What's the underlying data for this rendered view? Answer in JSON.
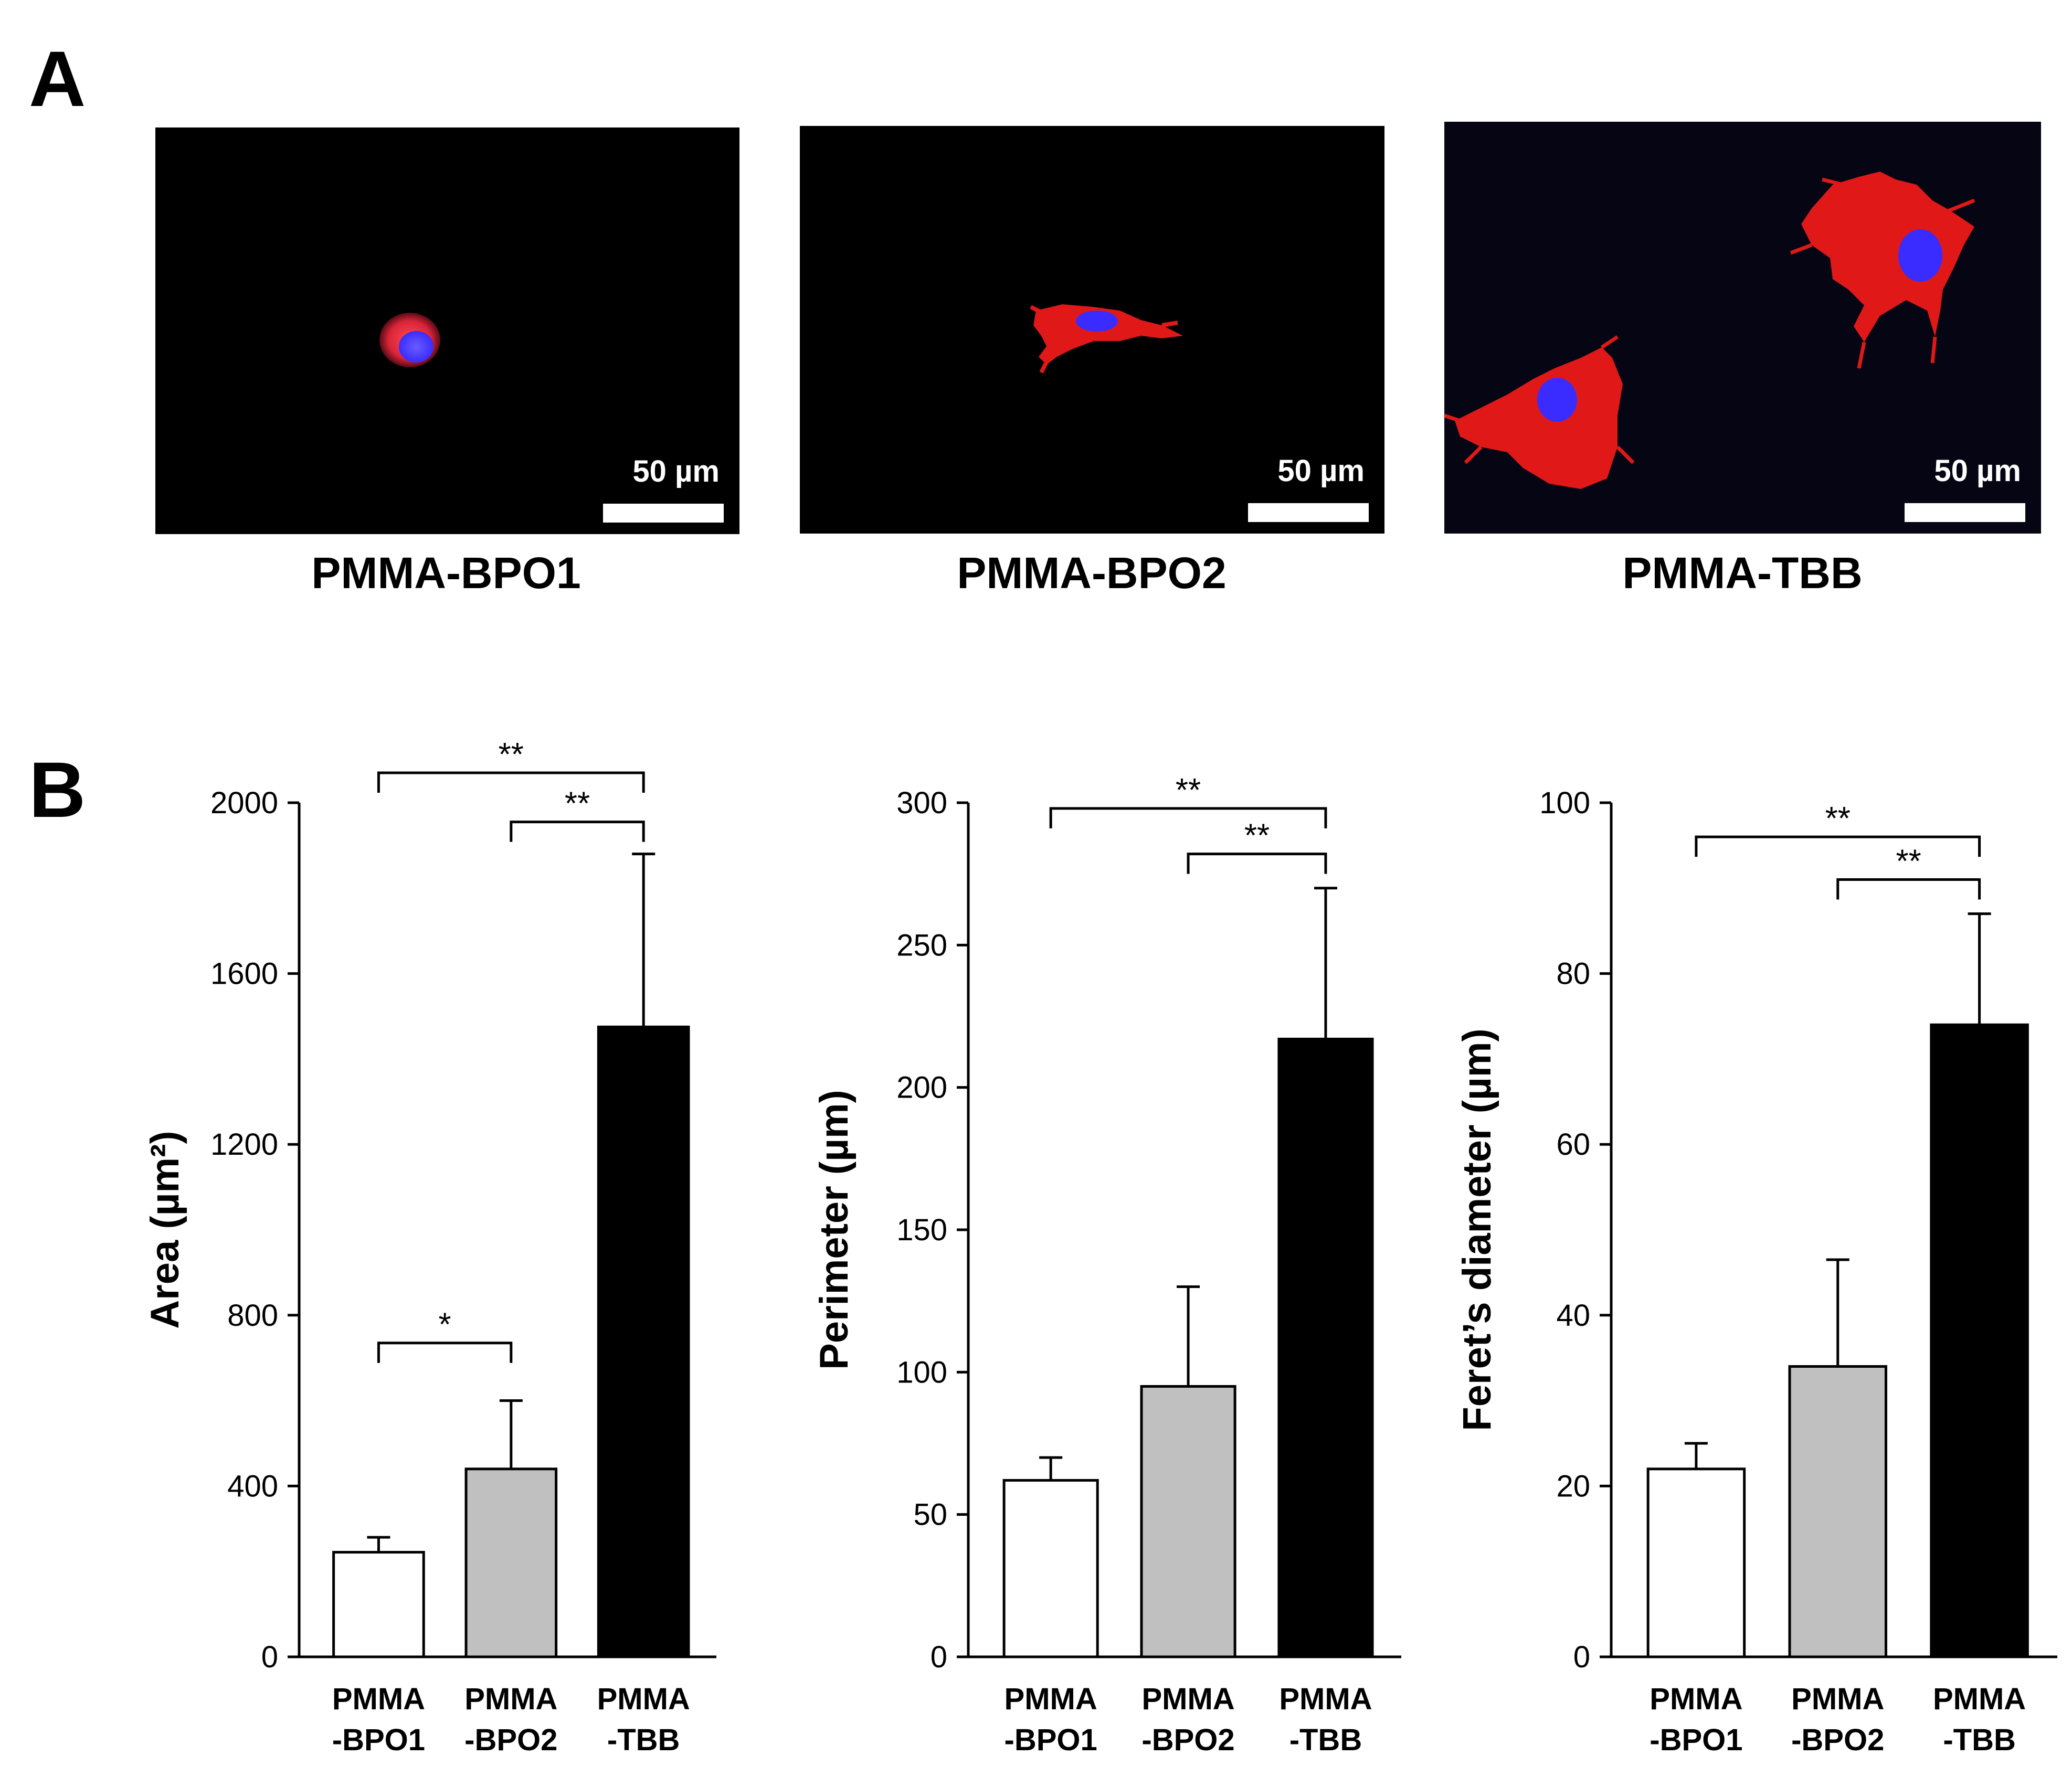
{
  "panel_a": {
    "label": "A",
    "images": [
      {
        "caption": "PMMA-BPO1",
        "scale": "50 µm"
      },
      {
        "caption": "PMMA-BPO2",
        "scale": "50 µm"
      },
      {
        "caption": "PMMA-TBB",
        "scale": "50 µm"
      }
    ]
  },
  "panel_b": {
    "label": "B"
  },
  "colors": {
    "bpo1": "#ffffff",
    "bpo2": "#c0c0c0",
    "tbb": "#000000",
    "actin": "#e01818",
    "nucleus": "#3a2cff"
  },
  "chart_data": [
    {
      "type": "bar",
      "categories": [
        "PMMA\n-BPO1",
        "PMMA\n-BPO2",
        "PMMA\n-TBB"
      ],
      "values": [
        245,
        440,
        1475
      ],
      "errors": [
        35,
        160,
        405
      ],
      "ylabel": "Area (µm²)",
      "ylim": [
        0,
        2000
      ],
      "yticks": [
        0,
        400,
        800,
        1200,
        1600,
        2000
      ],
      "significance": [
        {
          "from": 0,
          "to": 2,
          "label": "**",
          "y": 2070
        },
        {
          "from": 1,
          "to": 2,
          "label": "**",
          "y": 1955
        },
        {
          "from": 0,
          "to": 1,
          "label": "*",
          "y": 735
        }
      ]
    },
    {
      "type": "bar",
      "categories": [
        "PMMA\n-BPO1",
        "PMMA\n-BPO2",
        "PMMA\n-TBB"
      ],
      "values": [
        62,
        95,
        217
      ],
      "errors": [
        8,
        35,
        53
      ],
      "ylabel": "Perimeter (µm)",
      "ylim": [
        0,
        300
      ],
      "yticks": [
        0,
        50,
        100,
        150,
        200,
        250,
        300
      ],
      "significance": [
        {
          "from": 0,
          "to": 2,
          "label": "**",
          "y": 298
        },
        {
          "from": 1,
          "to": 2,
          "label": "**",
          "y": 282
        }
      ]
    },
    {
      "type": "bar",
      "categories": [
        "PMMA\n-BPO1",
        "PMMA\n-BPO2",
        "PMMA\n-TBB"
      ],
      "values": [
        22,
        34,
        74
      ],
      "errors": [
        3,
        12.5,
        13
      ],
      "ylabel": "Feret’s diameter (µm)",
      "ylim": [
        0,
        100
      ],
      "yticks": [
        0,
        20,
        40,
        60,
        80,
        100
      ],
      "significance": [
        {
          "from": 0,
          "to": 2,
          "label": "**",
          "y": 96
        },
        {
          "from": 1,
          "to": 2,
          "label": "**",
          "y": 91
        }
      ]
    }
  ]
}
